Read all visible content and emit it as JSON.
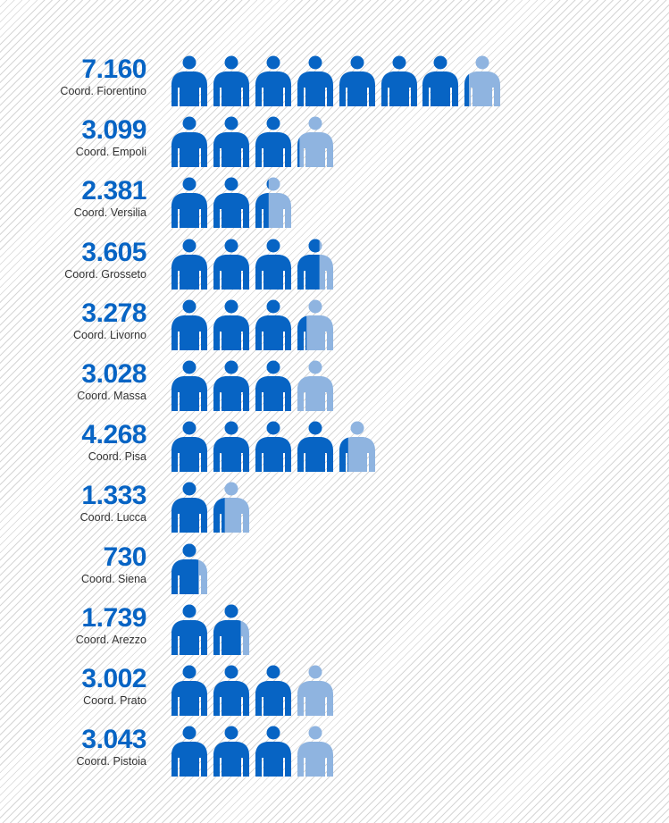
{
  "chart_data": {
    "type": "pictogram",
    "unit_per_icon": 1000,
    "icon": "person-icon",
    "color_full": "#0764c4",
    "color_partial": "#8fb4e0",
    "categories": [
      "Coord. Fiorentino",
      "Coord. Empoli",
      "Coord. Versilia",
      "Coord. Grosseto",
      "Coord. Livorno",
      "Coord. Massa",
      "Coord. Pisa",
      "Coord. Lucca",
      "Coord. Siena",
      "Coord. Arezzo",
      "Coord. Prato",
      "Coord. Pistoia"
    ],
    "values": [
      7160,
      3099,
      2381,
      3605,
      3278,
      3028,
      4268,
      1333,
      730,
      1739,
      3002,
      3043
    ],
    "value_labels": [
      "7.160",
      "3.099",
      "2.381",
      "3.605",
      "3.278",
      "3.028",
      "4.268",
      "1.333",
      "730",
      "1.739",
      "3.002",
      "3.043"
    ]
  }
}
